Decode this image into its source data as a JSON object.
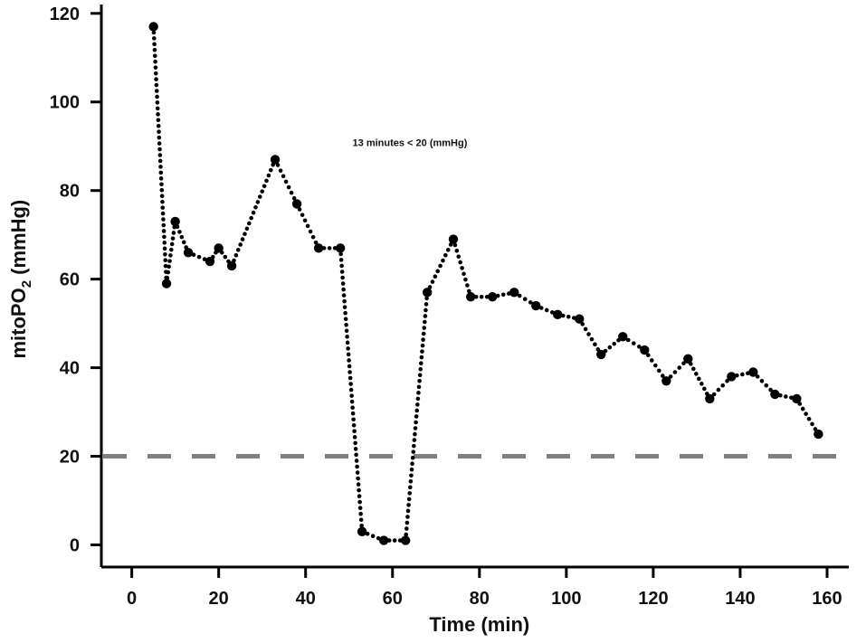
{
  "chart_data": {
    "type": "scatter",
    "title": "",
    "xlabel": "Time (min)",
    "ylabel_main": "mitoPO",
    "ylabel_sub": "2",
    "ylabel_unit": " (mmHg)",
    "xlim": [
      -7,
      165
    ],
    "ylim": [
      -5,
      122
    ],
    "xticks": [
      0,
      20,
      40,
      60,
      80,
      100,
      120,
      140,
      160
    ],
    "yticks": [
      0,
      20,
      40,
      60,
      80,
      100,
      120
    ],
    "threshold": {
      "y": 20,
      "color": "#808080",
      "style": "dashed"
    },
    "annotation": {
      "text": "13 minutes < 20 (mmHg)",
      "x": 64,
      "y": 90
    },
    "measured_points": [
      [
        5,
        117
      ],
      [
        8,
        59
      ],
      [
        10,
        73
      ],
      [
        13,
        66
      ],
      [
        18,
        64
      ],
      [
        20,
        67
      ],
      [
        23,
        63
      ],
      [
        33,
        87
      ],
      [
        38,
        77
      ],
      [
        43,
        67
      ],
      [
        48,
        67
      ],
      [
        53,
        3
      ],
      [
        58,
        1
      ],
      [
        63,
        1
      ],
      [
        68,
        57
      ],
      [
        74,
        69
      ],
      [
        78,
        56
      ],
      [
        83,
        56
      ],
      [
        88,
        57
      ],
      [
        93,
        54
      ],
      [
        98,
        52
      ],
      [
        103,
        51
      ],
      [
        108,
        43
      ],
      [
        113,
        47
      ],
      [
        118,
        44
      ],
      [
        123,
        37
      ],
      [
        128,
        42
      ],
      [
        133,
        33
      ],
      [
        138,
        38
      ],
      [
        143,
        39
      ],
      [
        148,
        34
      ],
      [
        153,
        33
      ],
      [
        158,
        25
      ]
    ],
    "point_color": "#000000"
  }
}
